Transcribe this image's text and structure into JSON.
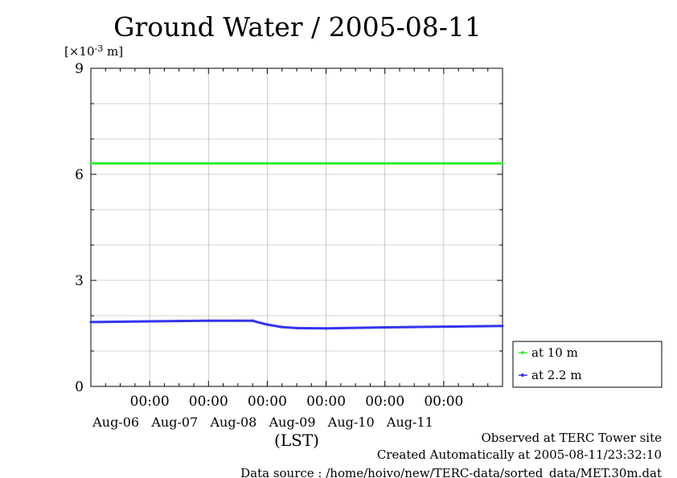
{
  "chart_data": {
    "type": "line",
    "title": "Ground Water / 2005-08-11",
    "ylabel": "[×10-3 m]",
    "unit": {
      "prefix": "[×10",
      "exp": "-3",
      "suffix": " m]"
    },
    "xlabel": "(LST)",
    "ylim": [
      0,
      9
    ],
    "yticks": [
      0,
      3,
      6,
      9
    ],
    "xlim": [
      "2005-08-05T00:00",
      "2005-08-12T00:00"
    ],
    "xticks": [
      {
        "time": "00:00",
        "day": "Aug-06"
      },
      {
        "time": "00:00",
        "day": "Aug-07"
      },
      {
        "time": "00:00",
        "day": "Aug-08"
      },
      {
        "time": "00:00",
        "day": "Aug-09"
      },
      {
        "time": "00:00",
        "day": "Aug-10"
      },
      {
        "time": "00:00",
        "day": "Aug-11"
      }
    ],
    "grid": true,
    "legend_position": "bottom-right",
    "series": [
      {
        "name": "at 10 m",
        "color": "#33ee33",
        "points": [
          [
            "2005-08-05T00:00",
            6.31
          ],
          [
            "2005-08-06T00:00",
            6.31
          ],
          [
            "2005-08-07T00:00",
            6.31
          ],
          [
            "2005-08-08T00:00",
            6.31
          ],
          [
            "2005-08-09T00:00",
            6.31
          ],
          [
            "2005-08-10T00:00",
            6.31
          ],
          [
            "2005-08-11T00:00",
            6.31
          ],
          [
            "2005-08-12T00:00",
            6.31
          ]
        ]
      },
      {
        "name": "at 2.2 m",
        "color": "#3333ee",
        "points": [
          [
            "2005-08-05T00:00",
            1.82
          ],
          [
            "2005-08-06T00:00",
            1.84
          ],
          [
            "2005-08-07T00:00",
            1.86
          ],
          [
            "2005-08-07T12:00",
            1.86
          ],
          [
            "2005-08-07T18:00",
            1.86
          ],
          [
            "2005-08-07T20:00",
            1.82
          ],
          [
            "2005-08-08T00:00",
            1.75
          ],
          [
            "2005-08-08T06:00",
            1.68
          ],
          [
            "2005-08-08T12:00",
            1.65
          ],
          [
            "2005-08-09T00:00",
            1.64
          ],
          [
            "2005-08-10T00:00",
            1.67
          ],
          [
            "2005-08-11T00:00",
            1.69
          ],
          [
            "2005-08-12T00:00",
            1.71
          ]
        ]
      }
    ]
  },
  "notes": {
    "observed": "Observed at TERC Tower site",
    "created": "Created Automatically at 2005-08-11/23:32:10",
    "source": "Data source : /home/hoivo/new/TERC-data/sorted_data/MET.30m.dat"
  }
}
